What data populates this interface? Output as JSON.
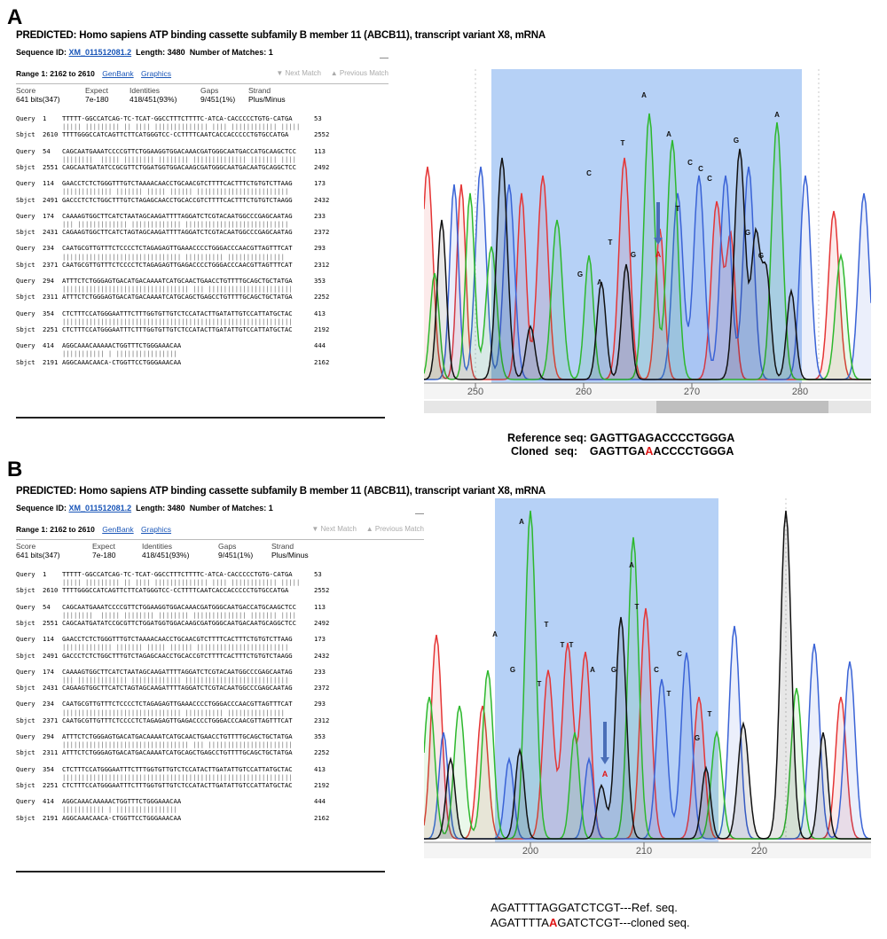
{
  "panels": [
    {
      "letter": "A",
      "blast": {
        "title": "PREDICTED: Homo sapiens ATP binding cassette subfamily B member 11 (ABCB11), transcript variant X8, mRNA",
        "seq_id_label": "Sequence ID:",
        "seq_id": "XM_011512081.2",
        "length_label": "Length:",
        "length": "3480",
        "matches_label": "Number of Matches:",
        "matches": "1",
        "collapse": "—",
        "range": "Range 1: 2162 to 2610",
        "genbank": "GenBank",
        "graphics": "Graphics",
        "next_match": "▼ Next Match",
        "prev_match": "▲ Previous Match",
        "stats_headers": [
          "Score",
          "Expect",
          "Identities",
          "Gaps",
          "Strand"
        ],
        "stats_values": [
          "641 bits(347)",
          "7e-180",
          "418/451(93%)",
          "9/451(1%)",
          "Plus/Minus"
        ]
      },
      "chromatogram": {
        "x_ticks": [
          "250",
          "260",
          "270",
          "280"
        ],
        "peak_labels": [
          "A",
          "T",
          "A",
          "A",
          "C",
          "C",
          "C",
          "C",
          "T",
          "G",
          "G",
          "G",
          "T",
          "G",
          "G",
          "A"
        ]
      },
      "caption": {
        "ref_label": "Reference seq:",
        "ref_seq": "GAGTTGAGACCCCTGGGA",
        "cloned_label": "Cloned  seq:",
        "cloned_pre": "GAGTTGA",
        "cloned_mut": "A",
        "cloned_post": "ACCCCTGGGA"
      }
    },
    {
      "letter": "B",
      "blast": {
        "title": "PREDICTED: Homo sapiens ATP binding cassette subfamily B member 11 (ABCB11), transcript variant X8, mRNA",
        "seq_id_label": "Sequence ID:",
        "seq_id": "XM_011512081.2",
        "length_label": "Length:",
        "length": "3480",
        "matches_label": "Number of Matches:",
        "matches": "1",
        "collapse": "—",
        "range": "Range 1: 2162 to 2610",
        "genbank": "GenBank",
        "graphics": "Graphics",
        "next_match": "▼ Next Match",
        "prev_match": "▲ Previous Match",
        "stats_headers": [
          "Score",
          "Expect",
          "Identities",
          "Gaps",
          "Strand"
        ],
        "stats_values": [
          "641 bits(347)",
          "7e-180",
          "418/451(93%)",
          "9/451(1%)",
          "Plus/Minus"
        ]
      },
      "chromatogram": {
        "x_ticks": [
          "200",
          "210",
          "220"
        ],
        "peak_labels": [
          "A",
          "G",
          "T",
          "T",
          "T",
          "T",
          "A",
          "G",
          "A",
          "T",
          "C",
          "T",
          "C",
          "G",
          "T",
          "A"
        ]
      },
      "caption": {
        "ref_pre": "AGATTTTAGGATCTCGT",
        "ref_suffix": "---Ref. seq.",
        "cloned_pre": "AGATTTTA",
        "cloned_mut": "A",
        "cloned_post": "GATCTCGT",
        "cloned_suffix": "---cloned seq."
      }
    }
  ],
  "alignment": [
    {
      "q_start": "1",
      "q_seq": "TTTTT-GGCCATCAG-TC-TCAT-GGCCTTTCTTTTC-ATCA-CACCCCCTGTG-CATGA",
      "q_end": "53",
      "bars": "||||| ||||||||| || |||| |||||||||||||| |||| |||||||||||| |||||",
      "s_start": "2610",
      "s_seq": "TTTTGGGCCATCAGTTCTTCATGGGTCC-CCTTTTCAATCACCACCCCCTGTGCCATGA",
      "s_end": "2552"
    },
    {
      "q_start": "54",
      "q_seq": "CAGCAATGAAATCCCCGTTCTGGAAGGTGGACAAACGATGGGCAATGACCATGCAAGCTCC",
      "q_end": "113",
      "bars": "||||||||  ||||| |||||||| |||||||| |||||||||||||| ||||||| ||||",
      "s_start": "2551",
      "s_seq": "CAGCAATGATATCCGCGTTCTGGATGGTGGACAAGCGATGGGCAATGACAATGCAGGCTCC",
      "s_end": "2492"
    },
    {
      "q_start": "114",
      "q_seq": "GAACCTCTCTGGGTTTGTCTAAAACAACCTGCAACGTCTTTTCACTTTCTGTGTCTTAAG",
      "q_end": "173",
      "bars": "||||||||||||| ||||||| ||||| |||||| ||||||||||||||||||||||||",
      "s_start": "2491",
      "s_seq": "GACCCTCTCTGGCTTTGTCTAGAGCAACCTGCACCGTCTTTTCACTTTCTGTGTCTAAGG",
      "s_end": "2432"
    },
    {
      "q_start": "174",
      "q_seq": "CAAAAGTGGCTTCATCTAATAGCAAGATTTTAGGATCTCGTACAATGGCCCGAGCAATAG",
      "q_end": "233",
      "bars": "||| ||||||||||||| ||||||||||||| |||||||||||||||||||||||||||",
      "s_start": "2431",
      "s_seq": "CAGAAGTGGCTTCATCTAGTAGCAAGATTTTAGGATCTCGTACAATGGCCCGAGCAATAG",
      "s_end": "2372"
    },
    {
      "q_start": "234",
      "q_seq": "CAATGCGTTGTTTCTCCCCTCTAGAGAGTTGAAACCCCTGGGACCCAACGTTAGTTTCAT",
      "q_end": "293",
      "bars": "||||||||||||||||||||||||||||||| |||||||||| |||||||||||||||",
      "s_start": "2371",
      "s_seq": "CAATGCGTTGTTTCTCCCCTCTAGAGAGTTGAGACCCCTGGGACCCAACGTTAGTTTCAT",
      "s_end": "2312"
    },
    {
      "q_start": "294",
      "q_seq": "ATTTCTCTGGGAGTGACATGACAAAATCATGCAACTGAACCTGTTTTGCAGCTGCTATGA",
      "q_end": "353",
      "bars": "||||||||||||||||||||||||||||||||| ||| ||||||||||||||||||||||",
      "s_start": "2311",
      "s_seq": "ATTTCTCTGGGAGTGACATGACAAAATCATGCAGCTGAGCCTGTTTTGCAGCTGCTATGA",
      "s_end": "2252"
    },
    {
      "q_start": "354",
      "q_seq": "CTCTTTCCATGGGAATTTCTTTGGTGTTGTCTCCATACTTGATATTGTCCATTATGCTAC",
      "q_end": "413",
      "bars": "||||||||||||||||||||||||||||||||||||||||||||||||||||||||||||",
      "s_start": "2251",
      "s_seq": "CTCTTTCCATGGGAATTTCTTTGGTGTTGTCTCCATACTTGATATTGTCCATTATGCTAC",
      "s_end": "2192"
    },
    {
      "q_start": "414",
      "q_seq": "AGGCAAACAAAAACTGGTTTCTGGGAAACAA",
      "q_end": "444",
      "bars": "||||||||||| | ||||||||||||||||",
      "s_start": "2191",
      "s_seq": "AGGCAAACAACA-CTGGTTCCTGGGAAACAA",
      "s_end": "2162"
    }
  ],
  "labels": {
    "query": "Query",
    "sbjct": "Sbjct"
  },
  "colors": {
    "a_trace": "#2db82d",
    "c_trace": "#3a63d6",
    "g_trace": "#111111",
    "t_trace": "#e53535",
    "highlight": "#a9c9f5",
    "mutation": "#e01515"
  }
}
